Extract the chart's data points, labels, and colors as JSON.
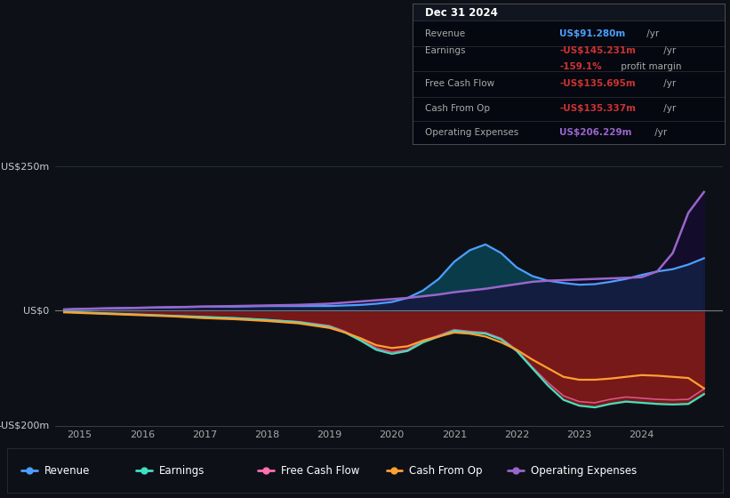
{
  "bg_color": "#0d1117",
  "plot_bg_color": "#0d1117",
  "info_box": {
    "date": "Dec 31 2024",
    "bg_color": "#000000",
    "border_color": "#333333",
    "rows": [
      {
        "label": "Revenue",
        "value": "US$91.280m",
        "unit": " /yr",
        "value_color": "#4d9fff"
      },
      {
        "label": "Earnings",
        "value": "-US$145.231m",
        "unit": " /yr",
        "value_color": "#cc3333"
      },
      {
        "label": "",
        "value": "-159.1%",
        "unit": " profit margin",
        "value_color": "#cc3333"
      },
      {
        "label": "Free Cash Flow",
        "value": "-US$135.695m",
        "unit": " /yr",
        "value_color": "#cc3333"
      },
      {
        "label": "Cash From Op",
        "value": "-US$135.337m",
        "unit": " /yr",
        "value_color": "#cc3333"
      },
      {
        "label": "Operating Expenses",
        "value": "US$206.229m",
        "unit": " /yr",
        "value_color": "#9966cc"
      }
    ]
  },
  "ylim": [
    -200,
    280
  ],
  "xlim_start": 2014.6,
  "xlim_end": 2025.3,
  "xticks": [
    2015,
    2016,
    2017,
    2018,
    2019,
    2020,
    2021,
    2022,
    2023,
    2024
  ],
  "years": [
    2014.75,
    2015.0,
    2015.5,
    2016.0,
    2016.5,
    2017.0,
    2017.5,
    2018.0,
    2018.5,
    2019.0,
    2019.25,
    2019.5,
    2019.75,
    2020.0,
    2020.25,
    2020.5,
    2020.75,
    2021.0,
    2021.25,
    2021.5,
    2021.75,
    2022.0,
    2022.25,
    2022.5,
    2022.75,
    2023.0,
    2023.25,
    2023.5,
    2023.75,
    2024.0,
    2024.25,
    2024.5,
    2024.75,
    2025.0
  ],
  "revenue": [
    2,
    3,
    4,
    5,
    6,
    7,
    7,
    8,
    8,
    8,
    9,
    10,
    12,
    15,
    22,
    35,
    55,
    85,
    105,
    115,
    100,
    75,
    60,
    52,
    48,
    45,
    46,
    50,
    55,
    62,
    68,
    72,
    80,
    91
  ],
  "earnings": [
    -2,
    -3,
    -5,
    -7,
    -9,
    -11,
    -13,
    -16,
    -20,
    -28,
    -38,
    -52,
    -68,
    -75,
    -70,
    -55,
    -45,
    -35,
    -38,
    -40,
    -50,
    -70,
    -100,
    -130,
    -155,
    -165,
    -168,
    -162,
    -158,
    -160,
    -162,
    -163,
    -162,
    -145
  ],
  "free_cash_flow": [
    -2,
    -3,
    -5,
    -7,
    -9,
    -11,
    -13,
    -16,
    -19,
    -26,
    -36,
    -50,
    -65,
    -72,
    -68,
    -52,
    -43,
    -33,
    -36,
    -38,
    -48,
    -68,
    -98,
    -125,
    -148,
    -158,
    -160,
    -154,
    -150,
    -152,
    -154,
    -155,
    -154,
    -136
  ],
  "cash_from_op": [
    -3,
    -4,
    -6,
    -8,
    -10,
    -13,
    -15,
    -18,
    -22,
    -30,
    -38,
    -48,
    -60,
    -65,
    -62,
    -52,
    -45,
    -38,
    -40,
    -45,
    -55,
    -68,
    -85,
    -100,
    -115,
    -120,
    -120,
    -118,
    -115,
    -112,
    -113,
    -115,
    -117,
    -135
  ],
  "operating_expenses": [
    2,
    3,
    4,
    5,
    6,
    7,
    8,
    9,
    10,
    12,
    14,
    16,
    18,
    20,
    22,
    25,
    28,
    32,
    35,
    38,
    42,
    46,
    50,
    52,
    53,
    54,
    55,
    56,
    57,
    58,
    68,
    100,
    170,
    206
  ],
  "legend_entries": [
    {
      "label": "Revenue",
      "color": "#4d9fff"
    },
    {
      "label": "Earnings",
      "color": "#40e0c0"
    },
    {
      "label": "Free Cash Flow",
      "color": "#ff70b0"
    },
    {
      "label": "Cash From Op",
      "color": "#ffa030"
    },
    {
      "label": "Operating Expenses",
      "color": "#9966cc"
    }
  ]
}
